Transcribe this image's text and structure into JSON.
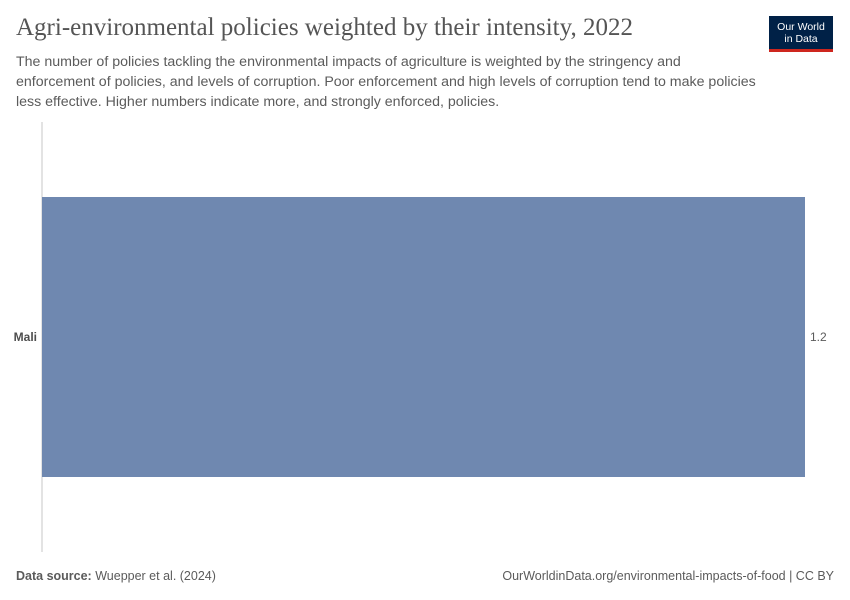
{
  "header": {
    "title": "Agri-environmental policies weighted by their intensity, 2022",
    "subtitle": "The number of policies tackling the environmental impacts of agriculture is weighted by the stringency and enforcement of policies, and levels of corruption. Poor enforcement and high levels of corruption tend to make policies less effective. Higher numbers indicate more, and strongly enforced, policies.",
    "logo_line1": "Our World",
    "logo_line2": "in Data"
  },
  "footer": {
    "source_label": "Data source:",
    "source_value": "Wuepper et al. (2024)",
    "url": "OurWorldinData.org/environmental-impacts-of-food | CC BY"
  },
  "colors": {
    "bar": "#6f88b0",
    "axis": "#dadada",
    "logo_bg": "#002147",
    "logo_accent": "#ce261e"
  },
  "chart_data": {
    "type": "bar",
    "orientation": "horizontal",
    "categories": [
      "Mali"
    ],
    "values": [
      1.2
    ],
    "value_labels": [
      "1.2"
    ],
    "xlim": [
      0,
      1.2
    ],
    "grid": false,
    "legend": "none"
  }
}
